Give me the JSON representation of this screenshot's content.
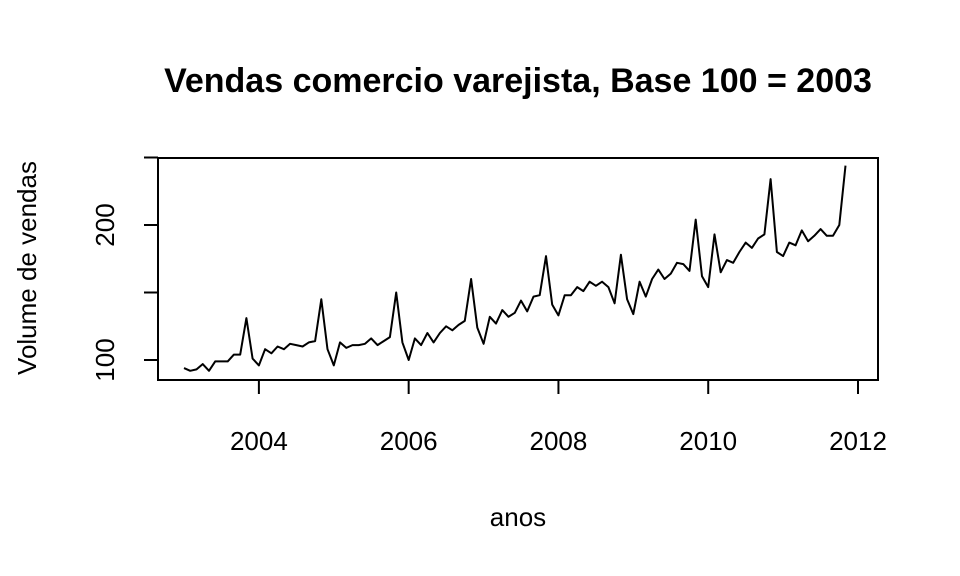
{
  "chart_data": {
    "type": "line",
    "title": "Vendas comercio varejista, Base 100 = 2003",
    "xlabel": "anos",
    "ylabel": "Volume de vendas",
    "xlim": [
      2003.0,
      2012.0
    ],
    "ylim": [
      90,
      250
    ],
    "x_ticks": [
      2004,
      2006,
      2008,
      2010,
      2012
    ],
    "x_tick_labels": [
      "2004",
      "2006",
      "2008",
      "2010",
      "2012"
    ],
    "y_ticks": [
      100,
      150,
      200,
      250
    ],
    "y_tick_labels": [
      "100",
      "",
      "200",
      ""
    ],
    "grid": false,
    "series": [
      {
        "x_start": 2003.0,
        "x_step": 0.083333,
        "values": [
          94,
          92,
          93,
          97,
          92,
          99,
          99,
          99,
          104,
          104,
          131,
          101,
          96,
          108,
          105,
          110,
          108,
          112,
          111,
          110,
          113,
          114,
          145,
          108,
          96,
          113,
          109,
          111,
          111,
          112,
          116,
          111,
          114,
          117,
          150,
          113,
          100,
          116,
          111,
          120,
          113,
          120,
          125,
          122,
          126,
          129,
          160,
          124,
          112,
          132,
          127,
          137,
          132,
          135,
          144,
          136,
          147,
          148,
          177,
          141,
          133,
          148,
          148,
          154,
          151,
          158,
          155,
          158,
          154,
          142,
          178,
          145,
          134,
          158,
          147,
          160,
          167,
          160,
          164,
          172,
          171,
          166,
          204,
          162,
          154,
          193,
          165,
          174,
          172,
          180,
          187,
          183,
          190,
          193,
          234,
          180,
          177,
          187,
          185,
          196,
          188,
          192,
          197,
          192,
          192,
          200,
          244
        ]
      }
    ]
  }
}
